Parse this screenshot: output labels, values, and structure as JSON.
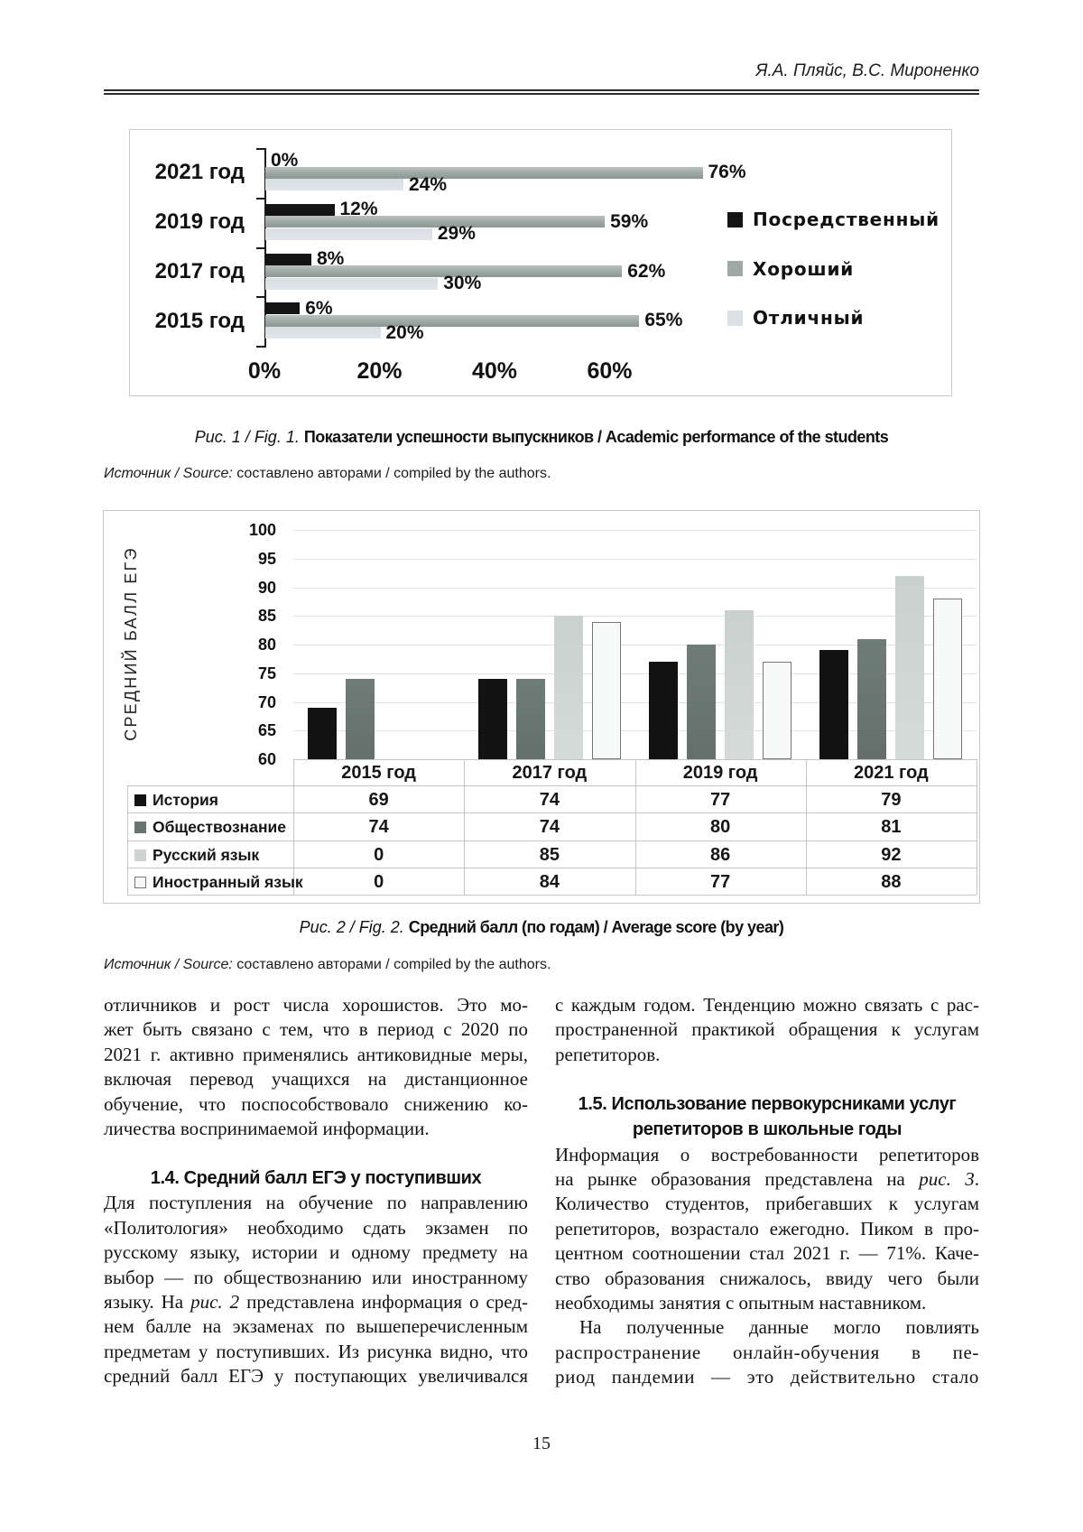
{
  "page": {
    "number": "15"
  },
  "header": {
    "authors": "Я.А. Пляйс, В.С. Мироненко"
  },
  "fig1": {
    "caption_prefix": "Рис. 1 / Fig. 1.",
    "caption_text": "Показатели успешности выпускников / Academic performance of the students",
    "source_prefix": "Источник / Source:",
    "source_text": "составлено авторами / compiled by the authors."
  },
  "fig2": {
    "caption_prefix": "Рис. 2 / Fig. 2.",
    "caption_text": "Средний балл (по годам) / Average score (by year)",
    "source_prefix": "Источник / Source:",
    "source_text": "составлено авторами / compiled by the authors.",
    "y_title": "СРЕДНИЙ БАЛЛ ЕГЭ"
  },
  "chart_data": [
    {
      "type": "bar",
      "orientation": "horizontal",
      "categories": [
        "2021 год",
        "2019 год",
        "2017 год",
        "2015 год"
      ],
      "series": [
        {
          "name": "Посредственный",
          "color": "#141414",
          "values": [
            0,
            12,
            8,
            6
          ]
        },
        {
          "name": "Хороший",
          "color": "#9faaa6",
          "values": [
            76,
            59,
            62,
            65
          ]
        },
        {
          "name": "Отличный",
          "color": "#dce1e6",
          "values": [
            24,
            29,
            30,
            20
          ]
        }
      ],
      "value_suffix": "%",
      "x_ticks": [
        "0%",
        "20%",
        "40%",
        "60%"
      ],
      "x_tick_values": [
        0,
        20,
        40,
        60
      ],
      "xlim": [
        0,
        80
      ],
      "legend_position": "right",
      "grid": false
    },
    {
      "type": "bar",
      "orientation": "vertical",
      "categories": [
        "2015 год",
        "2017 год",
        "2019 год",
        "2021 год"
      ],
      "series": [
        {
          "name": "История",
          "color": "#121212",
          "values": [
            69,
            74,
            77,
            79
          ]
        },
        {
          "name": "Обществознание",
          "color": "#687571",
          "values": [
            74,
            74,
            80,
            81
          ]
        },
        {
          "name": "Русский язык",
          "color": "#cdd4d2",
          "values": [
            0,
            85,
            86,
            92
          ]
        },
        {
          "name": "Иностранный язык",
          "color": "#f8f9f9",
          "border": "#777777",
          "values": [
            0,
            84,
            77,
            88
          ]
        }
      ],
      "ylabel": "СРЕДНИЙ БАЛЛ ЕГЭ",
      "ylim": [
        60,
        100
      ],
      "y_tick_step": 5,
      "y_ticks": [
        "60",
        "65",
        "70",
        "75",
        "80",
        "85",
        "90",
        "95",
        "100"
      ],
      "grid": true,
      "show_data_table": true,
      "legend_position": "table-left"
    }
  ],
  "body": {
    "left_column": [
      {
        "type": "para",
        "lines": [
          {
            "t": "отличников и рост числа хорошистов. Это мо-"
          },
          {
            "t": "жет быть связано с тем, что в период с 2020 по"
          },
          {
            "t": "2021 г. активно применялись антиковидные меры,"
          },
          {
            "t": "включая перевод учащихся на дистанционное"
          },
          {
            "t": "обучение, что поспособствовало снижению ко-"
          },
          {
            "t": "личества воспринимаемой информации.",
            "j": false
          }
        ]
      },
      {
        "type": "heading",
        "lines": [
          "1.4. Средний балл ЕГЭ у поступивших"
        ]
      },
      {
        "type": "para",
        "lines": [
          {
            "t": "Для поступления на обучение по направлению"
          },
          {
            "t": "«Политология» необходимо сдать экзамен по"
          },
          {
            "t": "русскому языку, истории и одному предмету на"
          },
          {
            "t": "выбор — по обществознанию или иностранному"
          },
          {
            "t": "языку. На *рис. 2* представлена информация о сред-"
          },
          {
            "t": "нем балле на экзаменах по вышеперечисленным"
          },
          {
            "t": "предметам у поступивших. Из рисунка видно, что"
          },
          {
            "t": "средний балл ЕГЭ у поступающих увеличивался"
          }
        ]
      }
    ],
    "right_column": [
      {
        "type": "para",
        "lines": [
          {
            "t": "с каждым годом. Тенденцию можно связать с рас-"
          },
          {
            "t": "пространенной практикой обращения к услугам"
          },
          {
            "t": "репетиторов.",
            "j": false
          }
        ]
      },
      {
        "type": "heading",
        "lines": [
          "1.5. Использование первокурсниками услуг",
          "репетиторов в школьные годы"
        ]
      },
      {
        "type": "para",
        "lines": [
          {
            "t": "Информация о востребованности репетиторов"
          },
          {
            "t": "на рынке образования представлена на *рис. 3*."
          },
          {
            "t": "Количество студентов, прибегавших к услугам"
          },
          {
            "t": "репетиторов, возрастало ежегодно. Пиком в про-"
          },
          {
            "t": "центном соотношении стал 2021 г. — 71%. Каче-"
          },
          {
            "t": "ство образования снижалось, ввиду чего были"
          },
          {
            "t": "необходимы занятия с опытным наставником.",
            "j": false
          }
        ]
      },
      {
        "type": "para",
        "lines": [
          {
            "t": "На полученные данные могло повлиять",
            "wide": true,
            "indent": true
          },
          {
            "t": "распространение онлайн-обучения в пе-",
            "wide": true
          },
          {
            "t": "риод пандемии — это действительно стало",
            "wide": true
          }
        ]
      }
    ]
  }
}
